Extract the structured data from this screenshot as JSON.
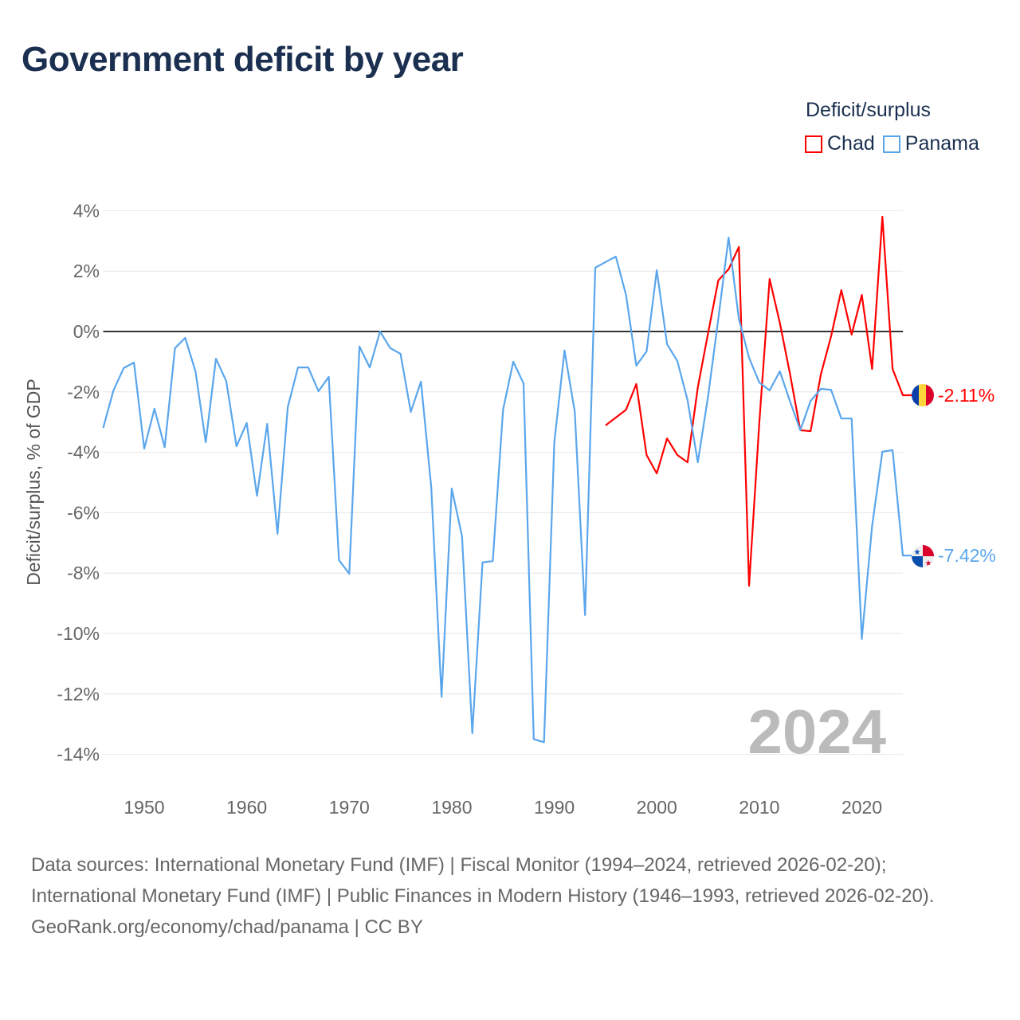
{
  "title": "Government deficit by year",
  "legend": {
    "title": "Deficit/surplus",
    "items": [
      {
        "label": "Chad",
        "color": "#ff0000"
      },
      {
        "label": "Panama",
        "color": "#5aa6ec"
      }
    ]
  },
  "chart_data": {
    "type": "line",
    "title": "Government deficit by year",
    "ylabel": "Deficit/surplus, % of GDP",
    "xlabel": "",
    "xlim": [
      1946,
      2024
    ],
    "ylim": [
      -14,
      4
    ],
    "x_ticks": [
      "1950",
      "1960",
      "1970",
      "1980",
      "1990",
      "2000",
      "2010",
      "2020"
    ],
    "y_ticks": [
      "4%",
      "2%",
      "0%",
      "-2%",
      "-4%",
      "-6%",
      "-8%",
      "-10%",
      "-12%",
      "-14%"
    ],
    "year_watermark": "2024",
    "series": [
      {
        "name": "Chad",
        "color": "#ff0000",
        "end_label": "-2.11%",
        "start": 1995,
        "values": [
          -3.11,
          -2.85,
          -2.59,
          -1.74,
          -4.09,
          -4.7,
          -3.54,
          -4.09,
          -4.33,
          -1.85,
          -0.05,
          1.69,
          2.06,
          2.8,
          -8.42,
          -3.0,
          1.74,
          0.29,
          -1.42,
          -3.27,
          -3.3,
          -1.42,
          -0.16,
          1.37,
          -0.1,
          1.21,
          -1.24,
          3.8,
          -1.24,
          -2.11
        ]
      },
      {
        "name": "Panama",
        "color": "#5aa6ec",
        "end_label": "-7.42%",
        "start": 1946,
        "values": [
          -3.19,
          -1.95,
          -1.21,
          -1.03,
          -3.88,
          -2.56,
          -3.83,
          -0.55,
          -0.21,
          -1.32,
          -3.67,
          -0.9,
          -1.64,
          -3.8,
          -3.03,
          -5.44,
          -3.06,
          -6.7,
          -2.51,
          -1.19,
          -1.19,
          -1.98,
          -1.5,
          -7.57,
          -8.02,
          -0.5,
          -1.19,
          0.0,
          -0.55,
          -0.74,
          -2.66,
          -1.66,
          -5.17,
          -12.1,
          -5.2,
          -6.78,
          -13.3,
          -7.65,
          -7.6,
          -2.59,
          -1.0,
          -1.72,
          -13.5,
          -13.6,
          -3.67,
          -0.63,
          -2.66,
          -9.39,
          2.11,
          2.3,
          2.48,
          1.21,
          -1.13,
          -0.66,
          2.03,
          -0.42,
          -0.98,
          -2.27,
          -4.33,
          -2.14,
          0.42,
          3.11,
          0.42,
          -0.87,
          -1.69,
          -1.95,
          -1.32,
          -2.32,
          -3.27,
          -2.3,
          -1.9,
          -1.93,
          -2.88,
          -2.88,
          -10.18,
          -6.44,
          -3.98,
          -3.93,
          -7.42
        ]
      }
    ]
  },
  "footer": {
    "sources": "Data sources: International Monetary Fund (IMF) | Fiscal Monitor (1994–2024, retrieved 2026-02-20); International Monetary Fund (IMF) | Public Finances in Modern History (1946–1993, retrieved 2026-02-20).",
    "credit": "GeoRank.org/economy/chad/panama | CC BY"
  }
}
